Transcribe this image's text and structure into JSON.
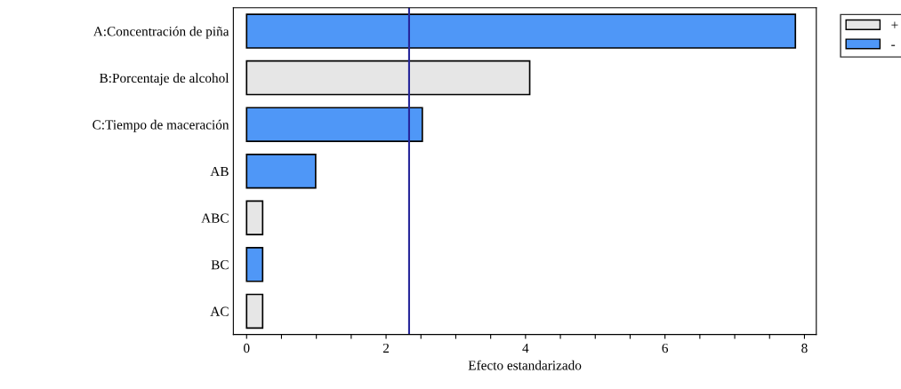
{
  "chart_data": {
    "type": "bar",
    "orientation": "horizontal",
    "xlabel": "Efecto estandarizado",
    "categories": [
      "A:Concentración de piña",
      "B:Porcentaje de alcohol",
      "C:Tiempo de maceración",
      "AB",
      "ABC",
      "BC",
      "AC"
    ],
    "series": [
      {
        "name": "+",
        "color": "#e6e6e6",
        "values": [
          null,
          4.06,
          null,
          null,
          0.23,
          null,
          0.23
        ]
      },
      {
        "name": "-",
        "color": "#4f97f7",
        "values": [
          7.87,
          null,
          2.52,
          0.99,
          null,
          0.23,
          null
        ]
      }
    ],
    "xlim": [
      -0.19,
      8.17
    ],
    "xticks": [
      0,
      {
        "value": 0.5,
        "label": null
      },
      {
        "value": 1,
        "label": null
      },
      {
        "value": 1.5,
        "label": null
      },
      2,
      {
        "value": 2.5,
        "label": null
      },
      {
        "value": 3,
        "label": null
      },
      {
        "value": 3.5,
        "label": null
      },
      4,
      {
        "value": 4.5,
        "label": null
      },
      {
        "value": 5,
        "label": null
      },
      {
        "value": 5.5,
        "label": null
      },
      6,
      {
        "value": 6.5,
        "label": null
      },
      {
        "value": 7,
        "label": null
      },
      {
        "value": 7.5,
        "label": null
      },
      8
    ],
    "ref_lines": [
      {
        "axis": "x",
        "value": 2.33,
        "color": "#26269a"
      }
    ],
    "grid": false,
    "legend": "top right"
  }
}
